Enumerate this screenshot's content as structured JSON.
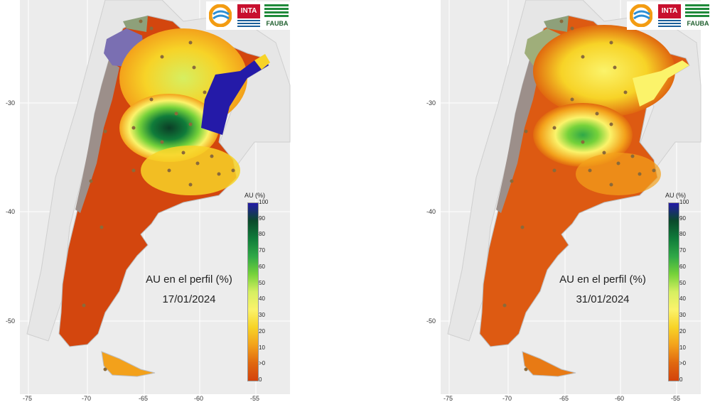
{
  "colors": {
    "panel_bg": "#ececec",
    "grid": "#ffffff",
    "land_outline": "#bdbdbd",
    "dry": "#d94e0e",
    "scale": [
      "#d3420c",
      "#e0680f",
      "#f3a11b",
      "#f7d327",
      "#fbf36a",
      "#d6ef61",
      "#76d23a",
      "#2fa847",
      "#107c3a",
      "#0b4a2b",
      "#241aa8"
    ],
    "andes": "#9c8f8a",
    "puna": "#7a6fb2",
    "station": "#8a6a3a"
  },
  "logos": {
    "inta": "INTA",
    "fauba": "FAUBA"
  },
  "legend": {
    "title": "AU (%)",
    "ticks": [
      "100",
      "90",
      "80",
      "70",
      "60",
      "50",
      "40",
      "30",
      "20",
      "10",
      ">0",
      "0"
    ]
  },
  "axes": {
    "y_ticks": [
      "-30",
      "-40",
      "-50"
    ],
    "x_ticks": [
      "-75",
      "-70",
      "-65",
      "-60",
      "-55"
    ]
  },
  "panels": [
    {
      "title": "AU en el perfil (%)",
      "date": "17/01/2024"
    },
    {
      "title": "AU en el perfil (%)",
      "date": "31/01/2024"
    }
  ]
}
